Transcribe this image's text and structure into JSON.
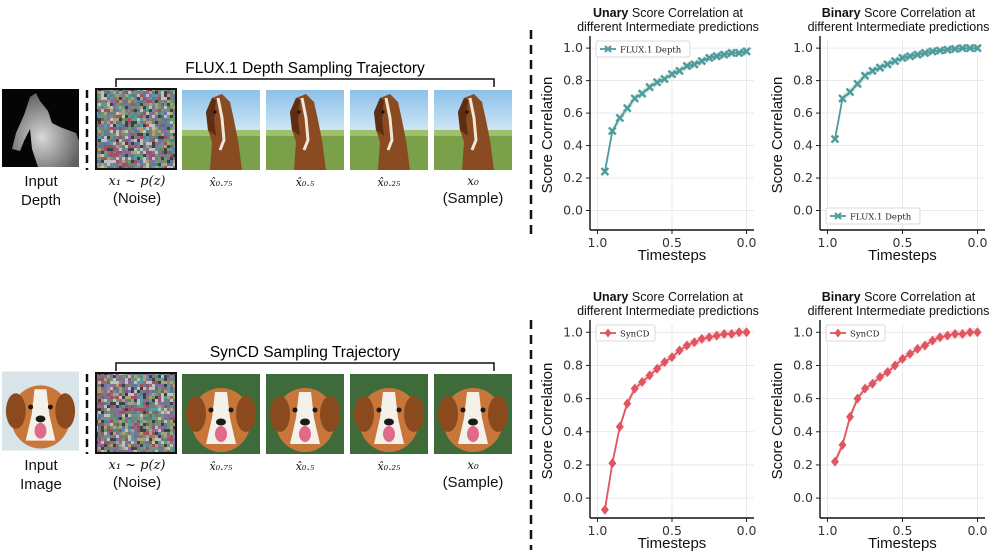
{
  "colors": {
    "flux": "#4e9b9b",
    "syncd": "#e0555f"
  },
  "rows": [
    {
      "input_label_line1": "Input",
      "input_label_line2": "Depth",
      "trajectory_title": "FLUX.1 Depth Sampling Trajectory",
      "noise_formula": "x₁ ~ p(z)",
      "noise_caption": "(Noise)",
      "steps": [
        "x̂₀.₇₅",
        "x̂₀.₅",
        "x̂₀.₂₅"
      ],
      "final_formula": "x₀",
      "final_caption": "(Sample)"
    },
    {
      "input_label_line1": "Input",
      "input_label_line2": "Image",
      "trajectory_title": "SynCD Sampling Trajectory",
      "noise_formula": "x₁ ~ p(z)",
      "noise_caption": "(Noise)",
      "steps": [
        "x̂₀.₇₅",
        "x̂₀.₅",
        "x̂₀.₂₅"
      ],
      "final_formula": "x₀",
      "final_caption": "(Sample)"
    }
  ],
  "chart_data": [
    {
      "type": "line",
      "title_bold": "Unary",
      "title_rest": " Score Correlation at",
      "title_line2": "different Intermediate predictions",
      "xlabel": "Timesteps",
      "ylabel": "Score Correlation",
      "xlim": [
        1.05,
        -0.05
      ],
      "ylim": [
        -0.12,
        1.05
      ],
      "xticks": [
        1.0,
        0.5,
        0.0
      ],
      "xtick_labels": [
        "1.0",
        "0.5",
        "0.0"
      ],
      "yticks": [
        0.0,
        0.2,
        0.4,
        0.6,
        0.8,
        1.0
      ],
      "ytick_labels": [
        "0.0",
        "0.2",
        "0.4",
        "0.6",
        "0.8",
        "1.0"
      ],
      "legend": "top-left",
      "marker": "x",
      "color": "#4e9b9b",
      "series": [
        {
          "name": "FLUX.1 Depth",
          "x": [
            0.95,
            0.9,
            0.85,
            0.8,
            0.75,
            0.7,
            0.65,
            0.6,
            0.55,
            0.5,
            0.45,
            0.4,
            0.35,
            0.3,
            0.25,
            0.2,
            0.15,
            0.1,
            0.05,
            0.0
          ],
          "y": [
            0.24,
            0.49,
            0.57,
            0.63,
            0.69,
            0.72,
            0.76,
            0.79,
            0.81,
            0.84,
            0.86,
            0.89,
            0.9,
            0.92,
            0.94,
            0.95,
            0.96,
            0.97,
            0.97,
            0.98
          ]
        }
      ]
    },
    {
      "type": "line",
      "title_bold": "Binary",
      "title_rest": " Score Correlation at",
      "title_line2": "different Intermediate predictions",
      "xlabel": "Timesteps",
      "ylabel": "Score Correlation",
      "xlim": [
        1.05,
        -0.05
      ],
      "ylim": [
        -0.12,
        1.05
      ],
      "xticks": [
        1.0,
        0.5,
        0.0
      ],
      "xtick_labels": [
        "1.0",
        "0.5",
        "0.0"
      ],
      "yticks": [
        0.0,
        0.2,
        0.4,
        0.6,
        0.8,
        1.0
      ],
      "ytick_labels": [
        "0.0",
        "0.2",
        "0.4",
        "0.6",
        "0.8",
        "1.0"
      ],
      "legend": "bottom-left",
      "marker": "x",
      "color": "#4e9b9b",
      "series": [
        {
          "name": "FLUX.1 Depth",
          "x": [
            0.95,
            0.9,
            0.85,
            0.8,
            0.75,
            0.7,
            0.65,
            0.6,
            0.55,
            0.5,
            0.45,
            0.4,
            0.35,
            0.3,
            0.25,
            0.2,
            0.15,
            0.1,
            0.05,
            0.0
          ],
          "y": [
            0.44,
            0.69,
            0.73,
            0.78,
            0.83,
            0.86,
            0.88,
            0.9,
            0.92,
            0.94,
            0.95,
            0.96,
            0.97,
            0.98,
            0.985,
            0.99,
            0.995,
            1.0,
            1.0,
            1.0
          ]
        }
      ]
    },
    {
      "type": "line",
      "title_bold": "Unary",
      "title_rest": " Score Correlation at",
      "title_line2": "different Intermediate predictions",
      "xlabel": "Timesteps",
      "ylabel": "Score Correlation",
      "xlim": [
        1.05,
        -0.05
      ],
      "ylim": [
        -0.12,
        1.05
      ],
      "xticks": [
        1.0,
        0.5,
        0.0
      ],
      "xtick_labels": [
        "1.0",
        "0.5",
        "0.0"
      ],
      "yticks": [
        0.0,
        0.2,
        0.4,
        0.6,
        0.8,
        1.0
      ],
      "ytick_labels": [
        "0.0",
        "0.2",
        "0.4",
        "0.6",
        "0.8",
        "1.0"
      ],
      "legend": "top-left",
      "marker": "diamond",
      "color": "#e0555f",
      "series": [
        {
          "name": "SynCD",
          "x": [
            0.95,
            0.9,
            0.85,
            0.8,
            0.75,
            0.7,
            0.65,
            0.6,
            0.55,
            0.5,
            0.45,
            0.4,
            0.35,
            0.3,
            0.25,
            0.2,
            0.15,
            0.1,
            0.05,
            0.0
          ],
          "y": [
            -0.07,
            0.21,
            0.43,
            0.57,
            0.66,
            0.7,
            0.74,
            0.78,
            0.82,
            0.85,
            0.89,
            0.92,
            0.94,
            0.96,
            0.97,
            0.98,
            0.99,
            0.99,
            1.0,
            1.0
          ]
        }
      ]
    },
    {
      "type": "line",
      "title_bold": "Binary",
      "title_rest": " Score Correlation at",
      "title_line2": "different Intermediate predictions",
      "xlabel": "Timesteps",
      "ylabel": "Score Correlation",
      "xlim": [
        1.05,
        -0.05
      ],
      "ylim": [
        -0.12,
        1.05
      ],
      "xticks": [
        1.0,
        0.5,
        0.0
      ],
      "xtick_labels": [
        "1.0",
        "0.5",
        "0.0"
      ],
      "yticks": [
        0.0,
        0.2,
        0.4,
        0.6,
        0.8,
        1.0
      ],
      "ytick_labels": [
        "0.0",
        "0.2",
        "0.4",
        "0.6",
        "0.8",
        "1.0"
      ],
      "legend": "top-left",
      "marker": "diamond",
      "color": "#e0555f",
      "series": [
        {
          "name": "SynCD",
          "x": [
            0.95,
            0.9,
            0.85,
            0.8,
            0.75,
            0.7,
            0.65,
            0.6,
            0.55,
            0.5,
            0.45,
            0.4,
            0.35,
            0.3,
            0.25,
            0.2,
            0.15,
            0.1,
            0.05,
            0.0
          ],
          "y": [
            0.22,
            0.32,
            0.49,
            0.6,
            0.66,
            0.69,
            0.73,
            0.76,
            0.8,
            0.84,
            0.87,
            0.9,
            0.92,
            0.95,
            0.97,
            0.98,
            0.99,
            0.99,
            1.0,
            1.0
          ]
        }
      ]
    }
  ]
}
